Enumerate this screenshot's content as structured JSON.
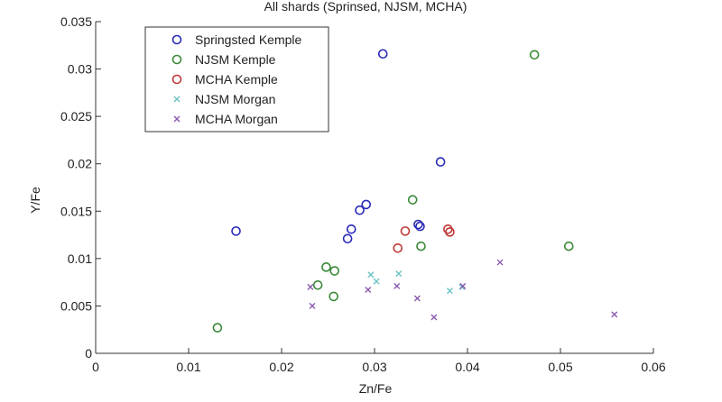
{
  "chart_data": {
    "type": "scatter",
    "title": "All shards (Sprinsed, NJSM, MCHA)",
    "xlabel": "Zn/Fe",
    "ylabel": "Y/Fe",
    "xlim": [
      0,
      0.06
    ],
    "ylim": [
      0,
      0.035
    ],
    "x_ticks": [
      "0",
      "0.01",
      "0.02",
      "0.03",
      "0.04",
      "0.05",
      "0.06"
    ],
    "y_ticks": [
      "0",
      "0.005",
      "0.01",
      "0.015",
      "0.02",
      "0.025",
      "0.03",
      "0.035"
    ],
    "grid": false,
    "legend_position": "top-left",
    "series": [
      {
        "name": "Springsted Kemple",
        "marker": "circle",
        "color": "#2a2ab8",
        "points": [
          [
            0.0151,
            0.0129
          ],
          [
            0.0271,
            0.0121
          ],
          [
            0.0275,
            0.0131
          ],
          [
            0.0284,
            0.0151
          ],
          [
            0.0291,
            0.0157
          ],
          [
            0.0309,
            0.0316
          ],
          [
            0.0347,
            0.0136
          ],
          [
            0.0349,
            0.0134
          ],
          [
            0.0371,
            0.0202
          ]
        ]
      },
      {
        "name": "NJSM Kemple",
        "marker": "circle",
        "color": "#3a8a3a",
        "points": [
          [
            0.0131,
            0.0027
          ],
          [
            0.0239,
            0.0072
          ],
          [
            0.0248,
            0.0091
          ],
          [
            0.0256,
            0.006
          ],
          [
            0.0257,
            0.0087
          ],
          [
            0.0341,
            0.0162
          ],
          [
            0.035,
            0.0113
          ],
          [
            0.0472,
            0.0315
          ],
          [
            0.0509,
            0.0113
          ]
        ]
      },
      {
        "name": "MCHA Kemple",
        "marker": "circle",
        "color": "#c03838",
        "points": [
          [
            0.0325,
            0.0111
          ],
          [
            0.0333,
            0.0129
          ],
          [
            0.0379,
            0.0131
          ],
          [
            0.0381,
            0.0128
          ]
        ]
      },
      {
        "name": "NJSM Morgan",
        "marker": "x",
        "color": "#6cc4c4",
        "points": [
          [
            0.0296,
            0.0083
          ],
          [
            0.0302,
            0.0076
          ],
          [
            0.0326,
            0.0084
          ],
          [
            0.0381,
            0.0066
          ],
          [
            0.0394,
            0.007
          ]
        ]
      },
      {
        "name": "MCHA Morgan",
        "marker": "x",
        "color": "#8a5ab0",
        "points": [
          [
            0.0231,
            0.007
          ],
          [
            0.0233,
            0.005
          ],
          [
            0.0293,
            0.0067
          ],
          [
            0.0324,
            0.0071
          ],
          [
            0.0346,
            0.0058
          ],
          [
            0.0364,
            0.0038
          ],
          [
            0.0395,
            0.0071
          ],
          [
            0.0435,
            0.0096
          ],
          [
            0.0558,
            0.0041
          ]
        ]
      }
    ]
  }
}
